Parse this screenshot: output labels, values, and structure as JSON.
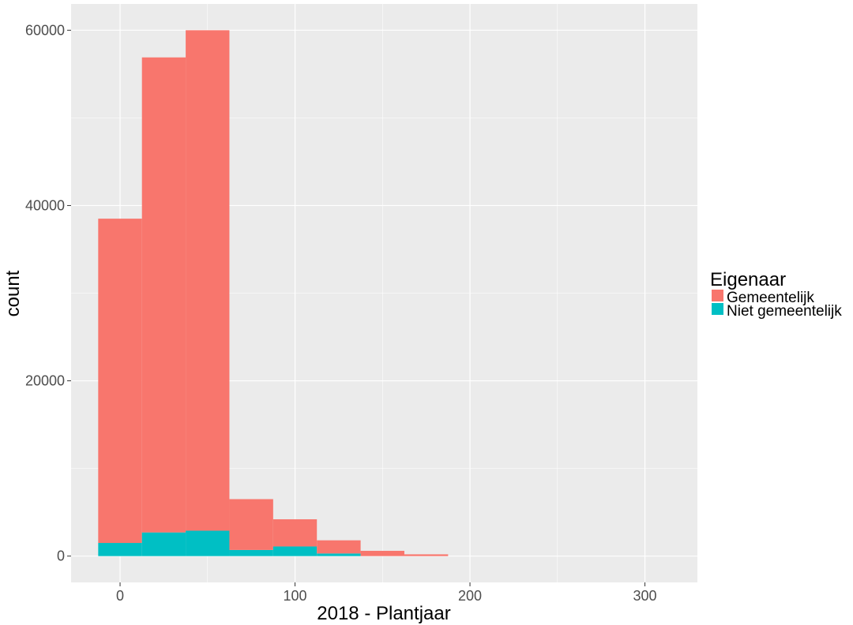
{
  "chart_data": {
    "type": "bar",
    "stacked": true,
    "xlabel": "2018 - Plantjaar",
    "ylabel": "count",
    "xlim": [
      -28,
      330
    ],
    "ylim": [
      -3000,
      63000
    ],
    "x_ticks": [
      0,
      100,
      200,
      300
    ],
    "y_ticks": [
      0,
      20000,
      40000,
      60000
    ],
    "x_tick_labels": [
      "0",
      "100",
      "200",
      "300"
    ],
    "y_tick_labels": [
      "0",
      "20000",
      "40000",
      "60000"
    ],
    "bin_edges": [
      -12.5,
      12.5,
      37.5,
      62.5,
      87.5,
      112.5,
      137.5,
      162.5,
      187.5
    ],
    "bin_centers": [
      0,
      25,
      50,
      75,
      100,
      125,
      150,
      175
    ],
    "series": [
      {
        "name": "Niet gemeentelijk",
        "values": [
          1500,
          2700,
          2900,
          700,
          1100,
          300,
          0,
          0
        ]
      },
      {
        "name": "Gemeentelijk",
        "values": [
          37000,
          54200,
          57100,
          5800,
          3100,
          1500,
          600,
          200
        ]
      }
    ],
    "colors": {
      "Gemeentelijk": "#F8766D",
      "Niet gemeentelijk": "#00BFC4",
      "panel": "#EBEBEB",
      "grid": "#FFFFFF",
      "tick": "#333333"
    },
    "legend": {
      "title": "Eigenaar",
      "position": "right",
      "entries": [
        "Gemeentelijk",
        "Niet gemeentelijk"
      ]
    },
    "grid": true
  }
}
